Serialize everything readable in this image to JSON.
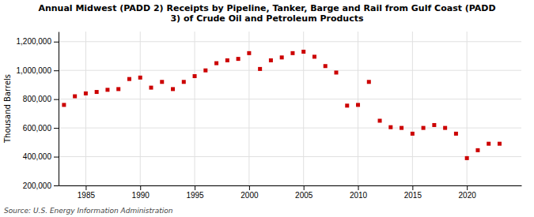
{
  "chart_data": {
    "type": "scatter",
    "title": "Annual Midwest (PADD 2) Receipts by Pipeline, Tanker, Barge and Rail from Gulf Coast (PADD\n3) of Crude Oil and Petroleum Products",
    "ylabel": "Thousand Barrels",
    "annotations": [
      "Source: U.S. Energy Information Administration"
    ],
    "x": [
      1983,
      1984,
      1985,
      1986,
      1987,
      1988,
      1989,
      1990,
      1991,
      1992,
      1993,
      1994,
      1995,
      1996,
      1997,
      1998,
      1999,
      2000,
      2001,
      2002,
      2003,
      2004,
      2005,
      2006,
      2007,
      2008,
      2009,
      2010,
      2011,
      2012,
      2013,
      2014,
      2015,
      2016,
      2017,
      2018,
      2019,
      2020,
      2021,
      2022,
      2023
    ],
    "values": [
      760000,
      820000,
      840000,
      850000,
      865000,
      870000,
      940000,
      950000,
      880000,
      920000,
      870000,
      920000,
      960000,
      1000000,
      1050000,
      1070000,
      1080000,
      1120000,
      1010000,
      1070000,
      1090000,
      1120000,
      1130000,
      1095000,
      1030000,
      985000,
      755000,
      760000,
      920000,
      650000,
      605000,
      600000,
      560000,
      600000,
      620000,
      600000,
      560000,
      390000,
      445000,
      490000,
      490000
    ],
    "color": "#cc0000",
    "marker": "square",
    "xlim": [
      1982.5,
      2025
    ],
    "xticks": [
      1985,
      1990,
      1995,
      2000,
      2005,
      2010,
      2015,
      2020
    ],
    "ylim": [
      200000,
      1270000
    ],
    "yticks": [
      {
        "value": 200000,
        "label": "200,000"
      },
      {
        "value": 400000,
        "label": "400,000"
      },
      {
        "value": 600000,
        "label": "600,000"
      },
      {
        "value": 800000,
        "label": "800,000"
      },
      {
        "value": 1000000,
        "label": "1,000,000"
      },
      {
        "value": 1200000,
        "label": "1,200,000"
      }
    ],
    "grid": true
  }
}
